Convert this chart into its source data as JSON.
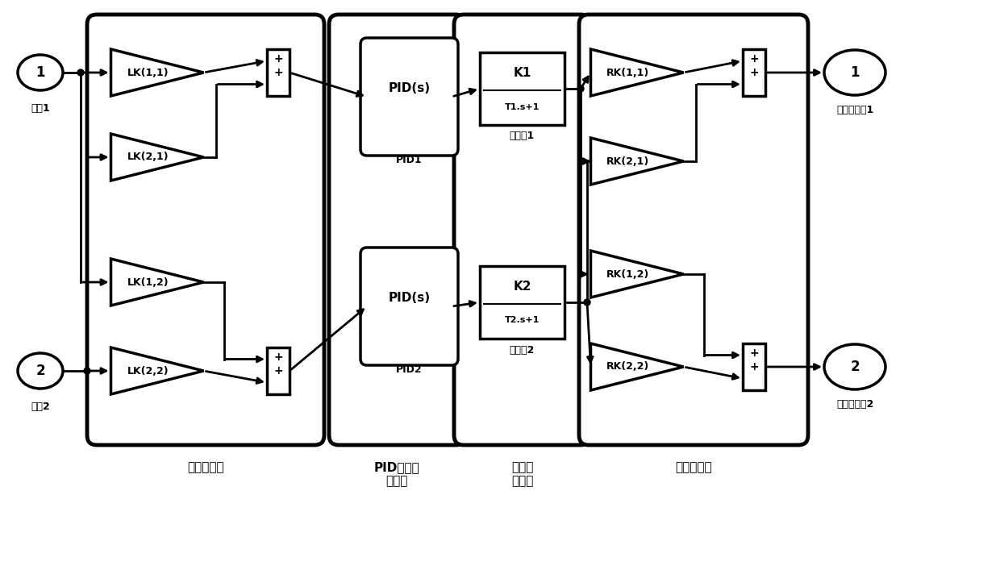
{
  "bg_color": "#ffffff",
  "labels": {
    "input1": "1",
    "input2": "2",
    "error1": "偏差1",
    "error2": "偏差2",
    "lk11": "LK(1,1)",
    "lk21": "LK(2,1)",
    "lk12": "LK(1,2)",
    "lk22": "LK(2,2)",
    "pid1_label": "PID(s)",
    "pid1_name": "PID1",
    "pid2_label": "PID(s)",
    "pid2_name": "PID2",
    "filter1_top": "K1",
    "filter1_bot": "T1.s+1",
    "filter1_name": "滤波器1",
    "filter2_top": "K2",
    "filter2_bot": "T2.s+1",
    "filter2_name": "滤波器2",
    "rk11": "RK(1,1)",
    "rk21": "RK(2,1)",
    "rk12": "RK(1,2)",
    "rk22": "RK(2,2)",
    "out1": "1",
    "out2": "2",
    "out1_label": "控制器输出1",
    "out2_label": "控制器输出2",
    "section1": "前置常数阵",
    "section2": "PID控制器\n对角阵",
    "section3": "滤波器\n对角阵",
    "section4": "后置常数阵"
  }
}
